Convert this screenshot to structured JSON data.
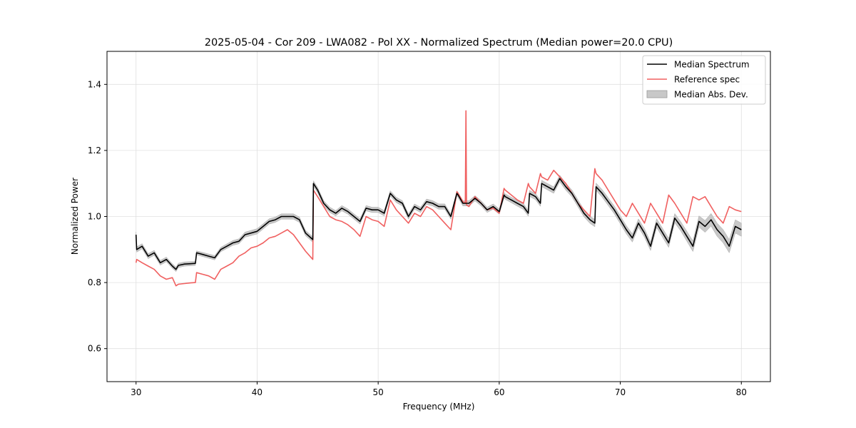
{
  "chart_data": {
    "type": "line",
    "title": "2025-05-04 - Cor 209 - LWA082 - Pol XX - Normalized Spectrum (Median power=20.0 CPU)",
    "xlabel": "Frequency (MHz)",
    "ylabel": "Normalized Power",
    "xlim": [
      27.6,
      82.4
    ],
    "ylim": [
      0.5,
      1.5
    ],
    "xticks": [
      30,
      40,
      50,
      60,
      70,
      80
    ],
    "yticks": [
      0.6,
      0.8,
      1.0,
      1.2,
      1.4
    ],
    "xtick_labels": [
      "30",
      "40",
      "50",
      "60",
      "70",
      "80"
    ],
    "ytick_labels": [
      "0.6",
      "0.8",
      "1.0",
      "1.2",
      "1.4"
    ],
    "grid": true,
    "legend_position": "top-right",
    "legend": {
      "median": "Median Spectrum",
      "reference": "Reference spec",
      "mad": "Median Abs. Dev."
    },
    "colors": {
      "median": "#000000",
      "reference": "#f06060",
      "mad": "#c8c8c8",
      "grid": "#e0e0e0"
    },
    "series": [
      {
        "name": "Median Spectrum",
        "x": [
          30.0,
          30.05,
          30.5,
          31.0,
          31.5,
          32.0,
          32.5,
          33.0,
          33.3,
          33.5,
          34.0,
          34.5,
          34.9,
          35.0,
          35.5,
          36.0,
          36.5,
          37.0,
          37.5,
          38.0,
          38.5,
          39.0,
          39.5,
          40.0,
          40.5,
          41.0,
          41.5,
          42.0,
          42.5,
          43.0,
          43.5,
          44.0,
          44.6,
          44.65,
          45.0,
          45.5,
          46.0,
          46.5,
          47.0,
          47.5,
          48.0,
          48.5,
          49.0,
          49.5,
          50.0,
          50.5,
          51.0,
          51.5,
          52.0,
          52.5,
          53.0,
          53.5,
          54.0,
          54.5,
          55.0,
          55.5,
          56.0,
          56.5,
          56.6,
          57.0,
          57.5,
          58.0,
          58.5,
          59.0,
          59.5,
          60.0,
          60.4,
          60.5,
          61.0,
          61.5,
          62.0,
          62.4,
          62.5,
          63.0,
          63.4,
          63.5,
          64.0,
          64.5,
          65.0,
          65.5,
          66.0,
          66.5,
          67.0,
          67.5,
          67.9,
          68.0,
          68.5,
          69.0,
          69.5,
          70.0,
          70.5,
          71.0,
          71.5,
          72.0,
          72.5,
          73.0,
          73.5,
          74.0,
          74.5,
          75.0,
          75.5,
          76.0,
          76.5,
          77.0,
          77.5,
          78.0,
          78.5,
          79.0,
          79.5,
          80.0
        ],
        "values": [
          0.945,
          0.9,
          0.91,
          0.88,
          0.89,
          0.86,
          0.87,
          0.85,
          0.84,
          0.852,
          0.856,
          0.857,
          0.858,
          0.89,
          0.885,
          0.88,
          0.875,
          0.9,
          0.91,
          0.92,
          0.925,
          0.945,
          0.95,
          0.955,
          0.97,
          0.985,
          0.99,
          1.0,
          1.0,
          1.0,
          0.99,
          0.95,
          0.93,
          1.1,
          1.08,
          1.04,
          1.02,
          1.01,
          1.025,
          1.015,
          1.0,
          0.985,
          1.025,
          1.02,
          1.02,
          1.01,
          1.07,
          1.05,
          1.04,
          1.0,
          1.03,
          1.02,
          1.045,
          1.04,
          1.03,
          1.03,
          1.0,
          1.07,
          1.065,
          1.04,
          1.04,
          1.055,
          1.04,
          1.02,
          1.03,
          1.015,
          1.065,
          1.06,
          1.05,
          1.04,
          1.03,
          1.01,
          1.07,
          1.06,
          1.04,
          1.1,
          1.09,
          1.08,
          1.115,
          1.09,
          1.07,
          1.04,
          1.01,
          0.99,
          0.98,
          1.09,
          1.07,
          1.045,
          1.02,
          0.99,
          0.96,
          0.935,
          0.98,
          0.95,
          0.91,
          0.98,
          0.95,
          0.92,
          0.995,
          0.97,
          0.94,
          0.91,
          0.985,
          0.97,
          0.99,
          0.96,
          0.94,
          0.91,
          0.97,
          0.96
        ],
        "color": "#000000"
      },
      {
        "name": "Reference spec",
        "x": [
          30.0,
          30.05,
          30.5,
          31.0,
          31.5,
          32.0,
          32.5,
          33.0,
          33.3,
          33.5,
          34.0,
          34.5,
          34.9,
          35.0,
          35.5,
          36.0,
          36.5,
          37.0,
          37.5,
          38.0,
          38.5,
          39.0,
          39.5,
          40.0,
          40.5,
          41.0,
          41.5,
          42.0,
          42.5,
          43.0,
          43.5,
          44.0,
          44.6,
          44.65,
          45.0,
          45.5,
          46.0,
          46.5,
          47.0,
          47.5,
          48.0,
          48.5,
          49.0,
          49.5,
          50.0,
          50.5,
          51.0,
          51.5,
          52.0,
          52.5,
          53.0,
          53.5,
          54.0,
          54.5,
          55.0,
          55.5,
          56.0,
          56.5,
          56.6,
          57.0,
          57.2,
          57.25,
          57.3,
          57.5,
          58.0,
          58.5,
          59.0,
          59.5,
          60.0,
          60.4,
          60.5,
          61.0,
          61.5,
          62.0,
          62.4,
          62.5,
          63.0,
          63.4,
          63.5,
          64.0,
          64.5,
          65.0,
          65.5,
          66.0,
          66.5,
          67.0,
          67.5,
          67.9,
          68.0,
          68.5,
          69.0,
          69.5,
          70.0,
          70.5,
          71.0,
          71.5,
          72.0,
          72.5,
          73.0,
          73.5,
          74.0,
          74.5,
          75.0,
          75.5,
          76.0,
          76.5,
          77.0,
          77.5,
          78.0,
          78.5,
          79.0,
          79.5,
          80.0
        ],
        "values": [
          0.86,
          0.87,
          0.86,
          0.85,
          0.84,
          0.82,
          0.81,
          0.815,
          0.79,
          0.795,
          0.797,
          0.799,
          0.8,
          0.83,
          0.825,
          0.82,
          0.81,
          0.84,
          0.85,
          0.86,
          0.88,
          0.89,
          0.905,
          0.91,
          0.92,
          0.935,
          0.94,
          0.95,
          0.96,
          0.945,
          0.92,
          0.895,
          0.87,
          1.08,
          1.06,
          1.03,
          1.0,
          0.99,
          0.985,
          0.975,
          0.96,
          0.94,
          1.0,
          0.99,
          0.985,
          0.97,
          1.05,
          1.02,
          1.0,
          0.98,
          1.01,
          1.0,
          1.03,
          1.02,
          1.0,
          0.98,
          0.96,
          1.075,
          1.07,
          1.045,
          1.04,
          1.32,
          1.035,
          1.03,
          1.06,
          1.04,
          1.02,
          1.025,
          1.01,
          1.085,
          1.08,
          1.065,
          1.05,
          1.04,
          1.1,
          1.09,
          1.07,
          1.13,
          1.12,
          1.11,
          1.14,
          1.12,
          1.1,
          1.07,
          1.04,
          1.02,
          1.0,
          1.145,
          1.13,
          1.11,
          1.08,
          1.05,
          1.02,
          1.0,
          1.04,
          1.01,
          0.98,
          1.04,
          1.01,
          0.98,
          1.065,
          1.04,
          1.01,
          0.98,
          1.06,
          1.05,
          1.06,
          1.03,
          1.0,
          0.98,
          1.03,
          1.02,
          1.015
        ],
        "color": "#f06060"
      },
      {
        "name": "Median Abs. Dev.",
        "x": [
          30.0,
          35.0,
          40.0,
          45.0,
          50.0,
          55.0,
          60.0,
          65.0,
          70.0,
          75.0,
          78.0,
          80.0
        ],
        "values": [
          0.008,
          0.006,
          0.008,
          0.008,
          0.008,
          0.008,
          0.008,
          0.01,
          0.012,
          0.014,
          0.02,
          0.02
        ],
        "color": "#c8c8c8"
      }
    ]
  }
}
